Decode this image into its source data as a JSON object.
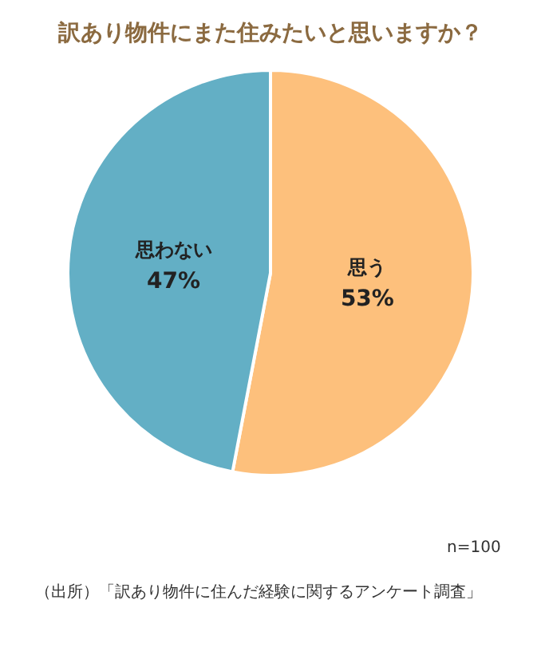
{
  "chart_data": {
    "type": "pie",
    "title": "訳あり物件にまた住みたいと思いますか？",
    "categories": [
      "思う",
      "思わない"
    ],
    "values": [
      53,
      47
    ],
    "value_labels": [
      "53%",
      "47%"
    ],
    "colors": [
      "#fdc07c",
      "#63afc5"
    ],
    "annotations": [
      "n=100",
      "（出所）「訳あり物件に住んだ経験に関するアンケート調査」"
    ]
  }
}
